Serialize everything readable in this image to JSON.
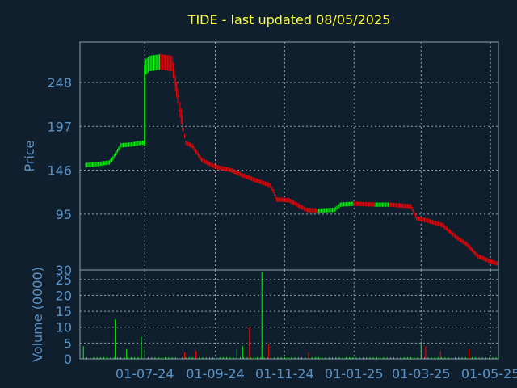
{
  "chart_data": [
    {
      "type": "candlestick",
      "title": "TIDE - last updated 08/05/2025",
      "ylabel": "Price",
      "ylim": [
        30,
        295
      ],
      "yticks": [
        "248",
        "197",
        "146",
        "95",
        "30"
      ],
      "yticks_values": [
        248,
        197,
        146,
        95,
        30
      ],
      "xticks": [
        "01-07-24",
        "01-09-24",
        "01-11-24",
        "01-01-25",
        "01-03-25",
        "01-05-25"
      ],
      "xlim_days": [
        "2024-05-05",
        "2025-05-08"
      ],
      "grid": true,
      "colors": {
        "up": "#00ff00",
        "down": "#ff0000",
        "background": "#0f1f2e",
        "text": "#5b93c8",
        "title": "#ffff33"
      },
      "series": [
        {
          "date": "2024-05-10",
          "close": 152
        },
        {
          "date": "2024-05-20",
          "close": 153
        },
        {
          "date": "2024-05-31",
          "close": 155
        },
        {
          "date": "2024-06-03",
          "close": 160
        },
        {
          "date": "2024-06-10",
          "close": 175
        },
        {
          "date": "2024-06-20",
          "close": 176
        },
        {
          "date": "2024-06-28",
          "close": 178
        },
        {
          "date": "2024-07-01",
          "close": 265
        },
        {
          "date": "2024-07-05",
          "close": 270
        },
        {
          "date": "2024-07-15",
          "close": 272
        },
        {
          "date": "2024-07-25",
          "close": 270
        },
        {
          "date": "2024-08-06",
          "close": 178
        },
        {
          "date": "2024-08-12",
          "close": 174
        },
        {
          "date": "2024-08-20",
          "close": 158
        },
        {
          "date": "2024-09-01",
          "close": 150
        },
        {
          "date": "2024-09-15",
          "close": 146
        },
        {
          "date": "2024-09-25",
          "close": 140
        },
        {
          "date": "2024-10-05",
          "close": 135
        },
        {
          "date": "2024-10-20",
          "close": 128
        },
        {
          "date": "2024-10-25",
          "close": 112
        },
        {
          "date": "2024-11-05",
          "close": 111
        },
        {
          "date": "2024-11-20",
          "close": 100
        },
        {
          "date": "2024-12-01",
          "close": 99
        },
        {
          "date": "2024-12-15",
          "close": 100
        },
        {
          "date": "2024-12-20",
          "close": 106
        },
        {
          "date": "2025-01-01",
          "close": 107
        },
        {
          "date": "2025-01-20",
          "close": 106
        },
        {
          "date": "2025-02-01",
          "close": 106
        },
        {
          "date": "2025-02-20",
          "close": 104
        },
        {
          "date": "2025-02-25",
          "close": 90
        },
        {
          "date": "2025-03-05",
          "close": 88
        },
        {
          "date": "2025-03-20",
          "close": 82
        },
        {
          "date": "2025-04-01",
          "close": 68
        },
        {
          "date": "2025-04-10",
          "close": 60
        },
        {
          "date": "2025-04-20",
          "close": 46
        },
        {
          "date": "2025-05-01",
          "close": 40
        },
        {
          "date": "2025-05-08",
          "close": 37
        }
      ]
    },
    {
      "type": "bar",
      "ylabel": "Volume (0000)",
      "ylim": [
        0,
        28
      ],
      "yticks": [
        "25",
        "20",
        "15",
        "10",
        "5",
        "0"
      ],
      "yticks_values": [
        25,
        20,
        15,
        10,
        5,
        0
      ],
      "spikes": [
        {
          "date": "2024-05-08",
          "value": 4,
          "dir": "up"
        },
        {
          "date": "2024-06-05",
          "value": 12.5,
          "dir": "up"
        },
        {
          "date": "2024-06-15",
          "value": 3,
          "dir": "up"
        },
        {
          "date": "2024-06-28",
          "value": 7,
          "dir": "up"
        },
        {
          "date": "2024-07-01",
          "value": 3,
          "dir": "up"
        },
        {
          "date": "2024-08-05",
          "value": 2,
          "dir": "down"
        },
        {
          "date": "2024-08-15",
          "value": 2.5,
          "dir": "down"
        },
        {
          "date": "2024-09-20",
          "value": 3,
          "dir": "up"
        },
        {
          "date": "2024-09-25",
          "value": 4,
          "dir": "up"
        },
        {
          "date": "2024-10-01",
          "value": 10,
          "dir": "down"
        },
        {
          "date": "2024-10-12",
          "value": 27.5,
          "dir": "up"
        },
        {
          "date": "2024-10-18",
          "value": 4.5,
          "dir": "down"
        },
        {
          "date": "2024-11-22",
          "value": 2,
          "dir": "down"
        },
        {
          "date": "2025-03-01",
          "value": 5.5,
          "dir": "up"
        },
        {
          "date": "2025-03-05",
          "value": 4,
          "dir": "down"
        },
        {
          "date": "2025-03-18",
          "value": 2.5,
          "dir": "down"
        },
        {
          "date": "2025-04-12",
          "value": 3,
          "dir": "down"
        }
      ]
    }
  ]
}
